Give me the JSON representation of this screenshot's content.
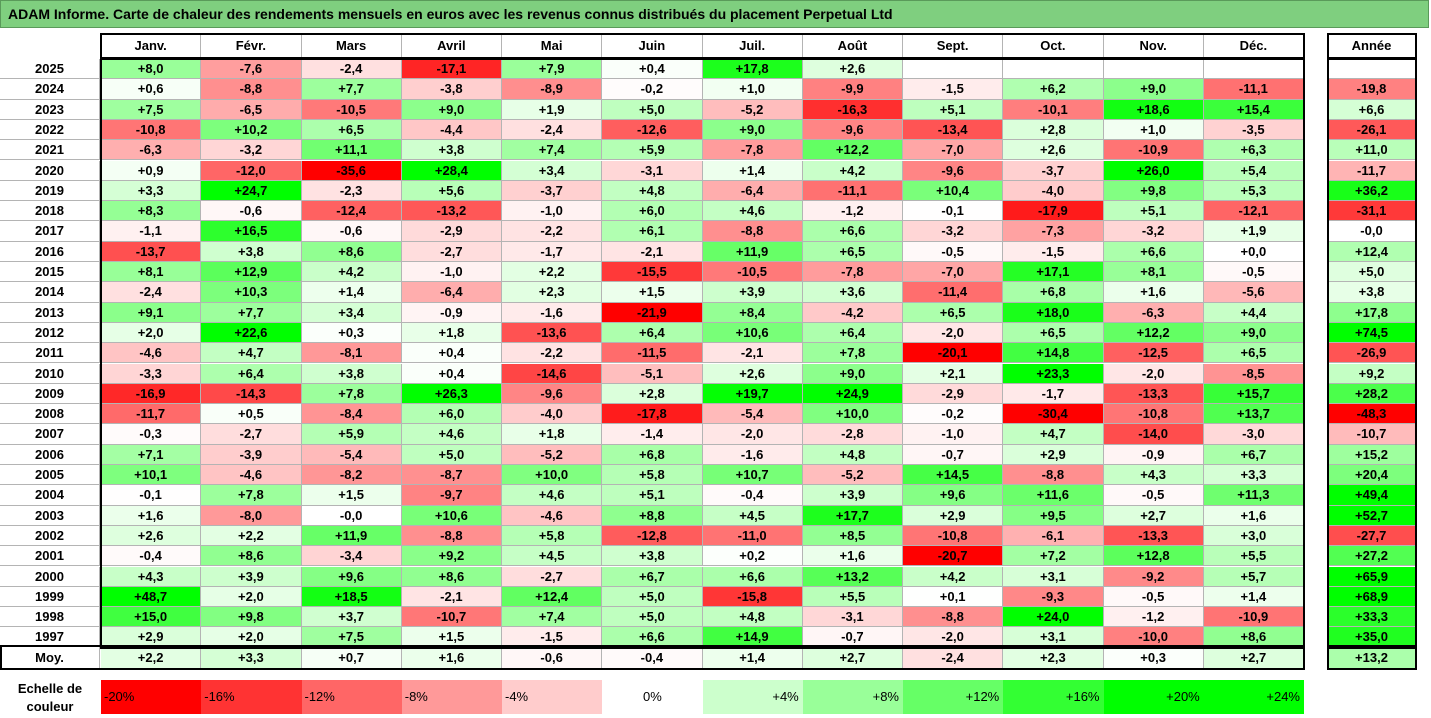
{
  "title": "ADAM Informe. Carte de chaleur des rendements mensuels en euros avec les revenus connus distribués du placement Perpetual Ltd",
  "chart_data": {
    "type": "heatmap",
    "title": "ADAM Informe. Carte de chaleur des rendements mensuels en euros avec les revenus connus distribués du placement Perpetual Ltd",
    "columns": [
      "Janv.",
      "Févr.",
      "Mars",
      "Avril",
      "Mai",
      "Juin",
      "Juil.",
      "Août",
      "Sept.",
      "Oct.",
      "Nov.",
      "Déc."
    ],
    "year_column_label": "Année",
    "rows": [
      {
        "year": "2025",
        "months": [
          "+8,0",
          "-7,6",
          "-2,4",
          "-17,1",
          "+7,9",
          "+0,4",
          "+17,8",
          "+2,6",
          "",
          "",
          "",
          ""
        ],
        "annual": ""
      },
      {
        "year": "2024",
        "months": [
          "+0,6",
          "-8,8",
          "+7,7",
          "-3,8",
          "-8,9",
          "-0,2",
          "+1,0",
          "-9,9",
          "-1,5",
          "+6,2",
          "+9,0",
          "-11,1"
        ],
        "annual": "-19,8"
      },
      {
        "year": "2023",
        "months": [
          "+7,5",
          "-6,5",
          "-10,5",
          "+9,0",
          "+1,9",
          "+5,0",
          "-5,2",
          "-16,3",
          "+5,1",
          "-10,1",
          "+18,6",
          "+15,4"
        ],
        "annual": "+6,6"
      },
      {
        "year": "2022",
        "months": [
          "-10,8",
          "+10,2",
          "+6,5",
          "-4,4",
          "-2,4",
          "-12,6",
          "+9,0",
          "-9,6",
          "-13,4",
          "+2,8",
          "+1,0",
          "-3,5"
        ],
        "annual": "-26,1"
      },
      {
        "year": "2021",
        "months": [
          "-6,3",
          "-3,2",
          "+11,1",
          "+3,8",
          "+7,4",
          "+5,9",
          "-7,8",
          "+12,2",
          "-7,0",
          "+2,6",
          "-10,9",
          "+6,3"
        ],
        "annual": "+11,0"
      },
      {
        "year": "2020",
        "months": [
          "+0,9",
          "-12,0",
          "-35,6",
          "+28,4",
          "+3,4",
          "-3,1",
          "+1,4",
          "+4,2",
          "-9,6",
          "-3,7",
          "+26,0",
          "+5,4"
        ],
        "annual": "-11,7"
      },
      {
        "year": "2019",
        "months": [
          "+3,3",
          "+24,7",
          "-2,3",
          "+5,6",
          "-3,7",
          "+4,8",
          "-6,4",
          "-11,1",
          "+10,4",
          "-4,0",
          "+9,8",
          "+5,3"
        ],
        "annual": "+36,2"
      },
      {
        "year": "2018",
        "months": [
          "+8,3",
          "-0,6",
          "-12,4",
          "-13,2",
          "-1,0",
          "+6,0",
          "+4,6",
          "-1,2",
          "-0,1",
          "-17,9",
          "+5,1",
          "-12,1"
        ],
        "annual": "-31,1"
      },
      {
        "year": "2017",
        "months": [
          "-1,1",
          "+16,5",
          "-0,6",
          "-2,9",
          "-2,2",
          "+6,1",
          "-8,8",
          "+6,6",
          "-3,2",
          "-7,3",
          "-3,2",
          "+1,9"
        ],
        "annual": "-0,0"
      },
      {
        "year": "2016",
        "months": [
          "-13,7",
          "+3,8",
          "+8,6",
          "-2,7",
          "-1,7",
          "-2,1",
          "+11,9",
          "+6,5",
          "-0,5",
          "-1,5",
          "+6,6",
          "+0,0"
        ],
        "annual": "+12,4"
      },
      {
        "year": "2015",
        "months": [
          "+8,1",
          "+12,9",
          "+4,2",
          "-1,0",
          "+2,2",
          "-15,5",
          "-10,5",
          "-7,8",
          "-7,0",
          "+17,1",
          "+8,1",
          "-0,5"
        ],
        "annual": "+5,0"
      },
      {
        "year": "2014",
        "months": [
          "-2,4",
          "+10,3",
          "+1,4",
          "-6,4",
          "+2,3",
          "+1,5",
          "+3,9",
          "+3,6",
          "-11,4",
          "+6,8",
          "+1,6",
          "-5,6"
        ],
        "annual": "+3,8"
      },
      {
        "year": "2013",
        "months": [
          "+9,1",
          "+7,7",
          "+3,4",
          "-0,9",
          "-1,6",
          "-21,9",
          "+8,4",
          "-4,2",
          "+6,5",
          "+18,0",
          "-6,3",
          "+4,4"
        ],
        "annual": "+17,8"
      },
      {
        "year": "2012",
        "months": [
          "+2,0",
          "+22,6",
          "+0,3",
          "+1,8",
          "-13,6",
          "+6,4",
          "+10,6",
          "+6,4",
          "-2,0",
          "+6,5",
          "+12,2",
          "+9,0"
        ],
        "annual": "+74,5"
      },
      {
        "year": "2011",
        "months": [
          "-4,6",
          "+4,7",
          "-8,1",
          "+0,4",
          "-2,2",
          "-11,5",
          "-2,1",
          "+7,8",
          "-20,1",
          "+14,8",
          "-12,5",
          "+6,5"
        ],
        "annual": "-26,9"
      },
      {
        "year": "2010",
        "months": [
          "-3,3",
          "+6,4",
          "+3,8",
          "+0,4",
          "-14,6",
          "-5,1",
          "+2,6",
          "+9,0",
          "+2,1",
          "+23,3",
          "-2,0",
          "-8,5"
        ],
        "annual": "+9,2"
      },
      {
        "year": "2009",
        "months": [
          "-16,9",
          "-14,3",
          "+7,8",
          "+26,3",
          "-9,6",
          "+2,8",
          "+19,7",
          "+24,9",
          "-2,9",
          "-1,7",
          "-13,3",
          "+15,7"
        ],
        "annual": "+28,2"
      },
      {
        "year": "2008",
        "months": [
          "-11,7",
          "+0,5",
          "-8,4",
          "+6,0",
          "-4,0",
          "-17,8",
          "-5,4",
          "+10,0",
          "-0,2",
          "-30,4",
          "-10,8",
          "+13,7"
        ],
        "annual": "-48,3"
      },
      {
        "year": "2007",
        "months": [
          "-0,3",
          "-2,7",
          "+5,9",
          "+4,6",
          "+1,8",
          "-1,4",
          "-2,0",
          "-2,8",
          "-1,0",
          "+4,7",
          "-14,0",
          "-3,0"
        ],
        "annual": "-10,7"
      },
      {
        "year": "2006",
        "months": [
          "+7,1",
          "-3,9",
          "-5,4",
          "+5,0",
          "-5,2",
          "+6,8",
          "-1,6",
          "+4,8",
          "-0,7",
          "+2,9",
          "-0,9",
          "+6,7"
        ],
        "annual": "+15,2"
      },
      {
        "year": "2005",
        "months": [
          "+10,1",
          "-4,6",
          "-8,2",
          "-8,7",
          "+10,0",
          "+5,8",
          "+10,7",
          "-5,2",
          "+14,5",
          "-8,8",
          "+4,3",
          "+3,3"
        ],
        "annual": "+20,4"
      },
      {
        "year": "2004",
        "months": [
          "-0,1",
          "+7,8",
          "+1,5",
          "-9,7",
          "+4,6",
          "+5,1",
          "-0,4",
          "+3,9",
          "+9,6",
          "+11,6",
          "-0,5",
          "+11,3"
        ],
        "annual": "+49,4"
      },
      {
        "year": "2003",
        "months": [
          "+1,6",
          "-8,0",
          "-0,0",
          "+10,6",
          "-4,6",
          "+8,8",
          "+4,5",
          "+17,7",
          "+2,9",
          "+9,5",
          "+2,7",
          "+1,6"
        ],
        "annual": "+52,7"
      },
      {
        "year": "2002",
        "months": [
          "+2,6",
          "+2,2",
          "+11,9",
          "-8,8",
          "+5,8",
          "-12,8",
          "-11,0",
          "+8,5",
          "-10,8",
          "-6,1",
          "-13,3",
          "+3,0"
        ],
        "annual": "-27,7"
      },
      {
        "year": "2001",
        "months": [
          "-0,4",
          "+8,6",
          "-3,4",
          "+9,2",
          "+4,5",
          "+3,8",
          "+0,2",
          "+1,6",
          "-20,7",
          "+7,2",
          "+12,8",
          "+5,5"
        ],
        "annual": "+27,2"
      },
      {
        "year": "2000",
        "months": [
          "+4,3",
          "+3,9",
          "+9,6",
          "+8,6",
          "-2,7",
          "+6,7",
          "+6,6",
          "+13,2",
          "+4,2",
          "+3,1",
          "-9,2",
          "+5,7"
        ],
        "annual": "+65,9"
      },
      {
        "year": "1999",
        "months": [
          "+48,7",
          "+2,0",
          "+18,5",
          "-2,1",
          "+12,4",
          "+5,0",
          "-15,8",
          "+5,5",
          "+0,1",
          "-9,3",
          "-0,5",
          "+1,4"
        ],
        "annual": "+68,9"
      },
      {
        "year": "1998",
        "months": [
          "+15,0",
          "+9,8",
          "+3,7",
          "-10,7",
          "+7,4",
          "+5,0",
          "+4,8",
          "-3,1",
          "-8,8",
          "+24,0",
          "-1,2",
          "-10,9"
        ],
        "annual": "+33,3"
      },
      {
        "year": "1997",
        "months": [
          "+2,9",
          "+2,0",
          "+7,5",
          "+1,5",
          "-1,5",
          "+6,6",
          "+14,9",
          "-0,7",
          "-2,0",
          "+3,1",
          "-10,0",
          "+8,6"
        ],
        "annual": "+35,0"
      }
    ],
    "average_row": {
      "label": "Moy.",
      "months": [
        "+2,2",
        "+3,3",
        "+0,7",
        "+1,6",
        "-0,6",
        "-0,4",
        "+1,4",
        "+2,7",
        "-2,4",
        "+2,3",
        "+0,3",
        "+2,7"
      ],
      "annual": "+13,2"
    },
    "color_scale": {
      "label_line1": "Echelle de",
      "label_line2": "couleur",
      "stops": [
        {
          "label": "-20%",
          "value": -20,
          "color": "#ff0000"
        },
        {
          "label": "-16%",
          "value": -16,
          "color": "#ff3333"
        },
        {
          "label": "-12%",
          "value": -12,
          "color": "#ff6666"
        },
        {
          "label": "-8%",
          "value": -8,
          "color": "#ff9999"
        },
        {
          "label": "-4%",
          "value": -4,
          "color": "#ffcccc"
        },
        {
          "label": "0%",
          "value": 0,
          "color": "#ffffff"
        },
        {
          "label": "+4%",
          "value": 4,
          "color": "#ccffcc"
        },
        {
          "label": "+8%",
          "value": 8,
          "color": "#99ff99"
        },
        {
          "label": "+12%",
          "value": 12,
          "color": "#66ff66"
        },
        {
          "label": "+16%",
          "value": 16,
          "color": "#33ff33"
        },
        {
          "label": "+20%",
          "value": 20,
          "color": "#00ff00"
        },
        {
          "label": "+24%",
          "value": 24,
          "color": "#00ff00"
        }
      ]
    }
  }
}
